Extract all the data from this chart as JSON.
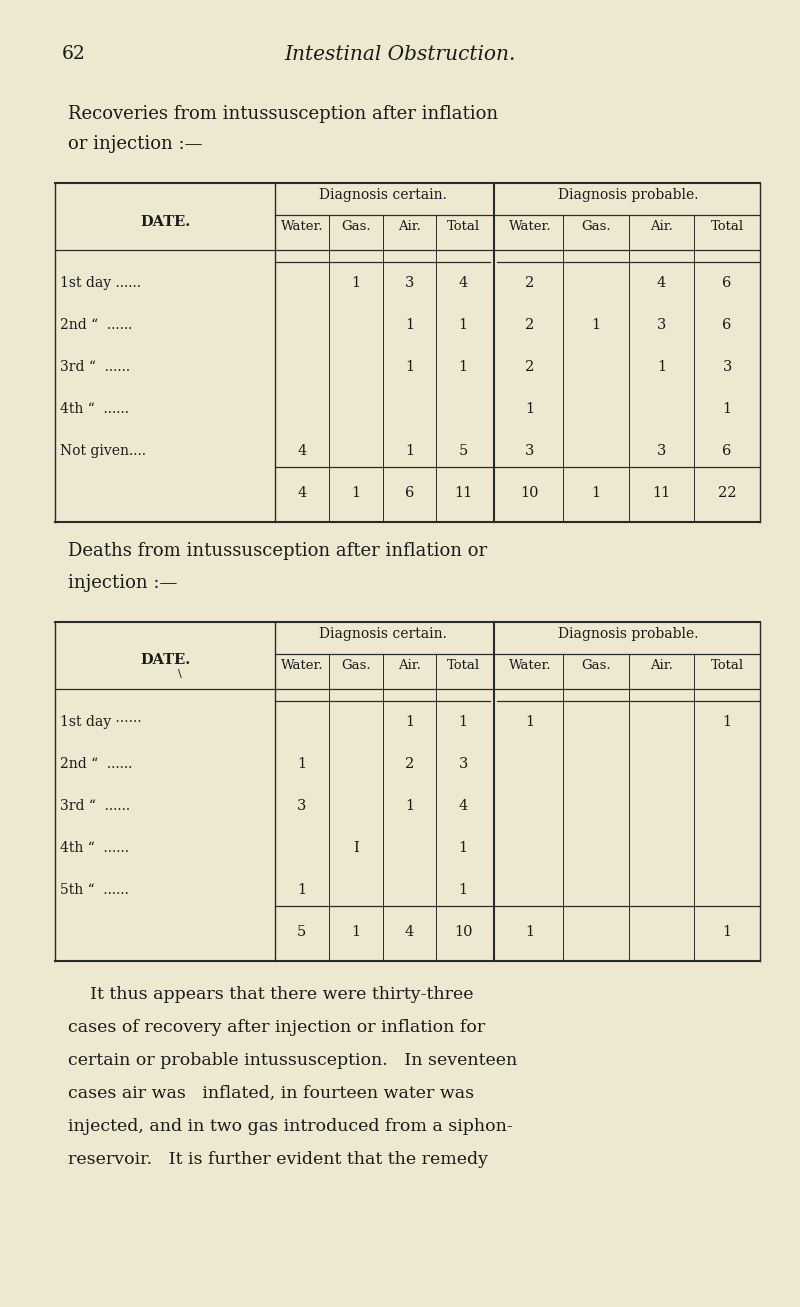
{
  "bg_color": "#ede8d0",
  "page_number": "62",
  "page_title": "Intestinal Obstruction.",
  "table1_header1": "Diagnosis certain.",
  "table1_header2": "Diagnosis probable.",
  "table2_header1": "Diagnosis certain.",
  "table2_header2": "Diagnosis probable.",
  "col_headers": [
    "Water.",
    "Gas.",
    "Air.",
    "Total",
    "Water.",
    "Gas.",
    "Air.",
    "Total"
  ],
  "date_label": "Date.",
  "table1_rows": [
    [
      "1st day ......",
      "",
      "1",
      "3",
      "4",
      "2",
      "",
      "4",
      "6"
    ],
    [
      "2nd “  ......",
      "",
      "",
      "1",
      "1",
      "2",
      "1",
      "3",
      "6"
    ],
    [
      "3rd “  ......",
      "",
      "",
      "1",
      "1",
      "2",
      "",
      "1",
      "3"
    ],
    [
      "4th “  ......",
      "",
      "",
      "",
      "",
      "1",
      "",
      "",
      "1"
    ],
    [
      "Not given....",
      "4",
      "",
      "1",
      "5",
      "3",
      "",
      "3",
      "6"
    ],
    [
      "",
      "4",
      "1",
      "6",
      "11",
      "10",
      "1",
      "11",
      "22"
    ]
  ],
  "table2_rows": [
    [
      "1st day ······",
      "",
      "",
      "1",
      "1",
      "1",
      "",
      "",
      "1"
    ],
    [
      "2nd “  ......",
      "1",
      "",
      "2",
      "3",
      "",
      "",
      "",
      ""
    ],
    [
      "3rd “  ......",
      "3",
      "",
      "1",
      "4",
      "",
      "",
      "",
      ""
    ],
    [
      "4th “  ......",
      "",
      "I",
      "",
      "1",
      "",
      "",
      "",
      ""
    ],
    [
      "5th “  ......",
      "1",
      "",
      "",
      "1",
      "",
      "",
      "",
      ""
    ],
    [
      "",
      "5",
      "1",
      "4",
      "10",
      "1",
      "",
      "",
      "1"
    ]
  ],
  "section1_line1": "Recoveries from intussusception after inflation",
  "section1_line2": "or injection :—",
  "section2_line1": "Deaths from intussusception after inflation or",
  "section2_line2": "injection :—",
  "para_lines": [
    "    It thus appears that there were thirty-three",
    "cases of recovery after injection or inflation for",
    "certain or probable intussusception.   In seventeen",
    "cases air was   inflated, in fourteen water was",
    "injected, and in two gas introduced from a siphon-",
    "reservoir.   It is further evident that the remedy"
  ]
}
